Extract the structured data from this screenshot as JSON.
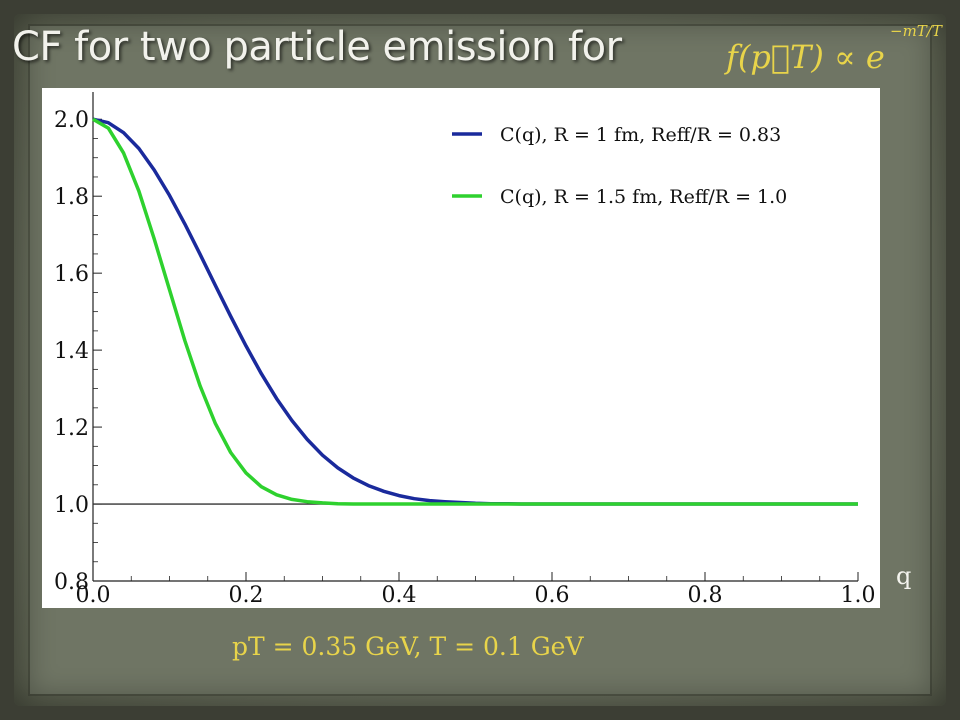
{
  "slide": {
    "title": "CF for two particle emission for",
    "title_formula": "f(p⃗T) ∝ e",
    "title_formula_exponent": "−mT/T",
    "x_axis_side_label": "q",
    "caption": "pT = 0.35 GeV, T = 0.1 GeV",
    "accent_color": "#e8d44a"
  },
  "chart_data": {
    "type": "line",
    "title": "",
    "xlabel": "q",
    "ylabel": "",
    "xlim": [
      0.0,
      1.0
    ],
    "ylim": [
      0.8,
      2.05
    ],
    "x_ticks": [
      "0.0",
      "0.2",
      "0.4",
      "0.6",
      "0.8",
      "1.0"
    ],
    "y_ticks": [
      "0.8",
      "1.0",
      "1.2",
      "1.4",
      "1.6",
      "1.8",
      "2.0"
    ],
    "grid": false,
    "legend_position": "top-right",
    "reference_line": {
      "y": 1.0,
      "color": "#333333"
    },
    "series": [
      {
        "name": "C(q), R = 1 fm, Reff/R = 0.83",
        "color": "#1a2a9c",
        "x": [
          0.0,
          0.02,
          0.04,
          0.06,
          0.08,
          0.1,
          0.12,
          0.14,
          0.16,
          0.18,
          0.2,
          0.22,
          0.24,
          0.26,
          0.28,
          0.3,
          0.32,
          0.34,
          0.36,
          0.38,
          0.4,
          0.42,
          0.44,
          0.46,
          0.48,
          0.5,
          0.52,
          0.54,
          0.56,
          0.58,
          0.6,
          0.7,
          0.8,
          0.9,
          1.0
        ],
        "y": [
          2.0,
          1.991,
          1.965,
          1.924,
          1.868,
          1.802,
          1.728,
          1.649,
          1.568,
          1.488,
          1.411,
          1.339,
          1.274,
          1.217,
          1.168,
          1.127,
          1.094,
          1.068,
          1.048,
          1.033,
          1.022,
          1.014,
          1.009,
          1.006,
          1.004,
          1.002,
          1.001,
          1.001,
          1.0,
          1.0,
          1.0,
          1.0,
          1.0,
          1.0,
          1.0
        ]
      },
      {
        "name": "C(q), R = 1.5 fm, Reff/R = 1.0",
        "color": "#2ed12e",
        "x": [
          0.0,
          0.02,
          0.04,
          0.06,
          0.08,
          0.1,
          0.12,
          0.14,
          0.16,
          0.18,
          0.2,
          0.22,
          0.24,
          0.26,
          0.28,
          0.3,
          0.32,
          0.34,
          0.36,
          0.38,
          0.4,
          0.5,
          0.6,
          0.8,
          1.0
        ],
        "y": [
          2.0,
          1.977,
          1.912,
          1.813,
          1.689,
          1.557,
          1.425,
          1.307,
          1.209,
          1.134,
          1.081,
          1.045,
          1.024,
          1.012,
          1.006,
          1.003,
          1.001,
          1.0,
          1.0,
          1.0,
          1.0,
          1.0,
          1.0,
          1.0,
          1.0
        ]
      }
    ]
  }
}
